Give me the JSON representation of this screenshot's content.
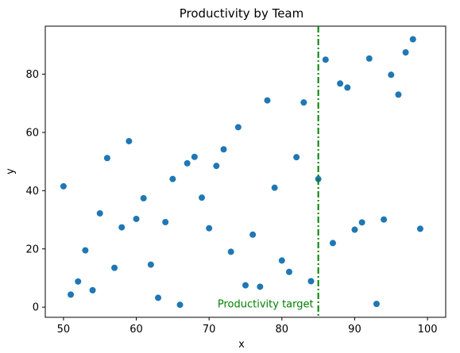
{
  "chart_data": {
    "type": "scatter",
    "title": "Productivity by Team",
    "xlabel": "x",
    "ylabel": "y",
    "xlim": [
      47.5,
      102.5
    ],
    "ylim": [
      -3.5,
      96.5
    ],
    "x_ticks": [
      50,
      60,
      70,
      80,
      90,
      100
    ],
    "y_ticks": [
      0,
      20,
      40,
      60,
      80
    ],
    "grid": false,
    "legend": "none",
    "marker_color": "#1f77b4",
    "series": [
      {
        "points": [
          [
            50,
            41.5
          ],
          [
            51,
            4.3
          ],
          [
            52,
            8.8
          ],
          [
            53,
            19.5
          ],
          [
            54,
            5.8
          ],
          [
            55,
            32.2
          ],
          [
            56,
            51.2
          ],
          [
            57,
            13.5
          ],
          [
            58,
            27.4
          ],
          [
            59,
            57.0
          ],
          [
            60,
            30.3
          ],
          [
            61,
            37.4
          ],
          [
            62,
            14.6
          ],
          [
            63,
            3.2
          ],
          [
            64,
            29.2
          ],
          [
            65,
            44.0
          ],
          [
            66,
            0.8
          ],
          [
            67,
            49.4
          ],
          [
            68,
            51.6
          ],
          [
            69,
            37.6
          ],
          [
            70,
            27.1
          ],
          [
            71,
            48.5
          ],
          [
            72,
            54.2
          ],
          [
            73,
            19.0
          ],
          [
            74,
            61.8
          ],
          [
            75,
            7.5
          ],
          [
            76,
            24.9
          ],
          [
            77,
            7.0
          ],
          [
            78,
            71.0
          ],
          [
            79,
            41.0
          ],
          [
            80,
            16.0
          ],
          [
            81,
            12.1
          ],
          [
            82,
            51.5
          ],
          [
            83,
            70.3
          ],
          [
            84,
            8.9
          ],
          [
            85,
            44.0
          ],
          [
            86,
            85.0
          ],
          [
            87,
            22.0
          ],
          [
            88,
            76.8
          ],
          [
            89,
            75.4
          ],
          [
            90,
            26.6
          ],
          [
            91,
            29.1
          ],
          [
            92,
            85.4
          ],
          [
            93,
            1.1
          ],
          [
            94,
            30.1
          ],
          [
            95,
            79.8
          ],
          [
            96,
            73.0
          ],
          [
            97,
            87.5
          ],
          [
            98,
            92.0
          ],
          [
            99,
            26.9
          ]
        ]
      }
    ],
    "reference_line": {
      "orientation": "vertical",
      "x": 85,
      "color": "#008000",
      "style": "dash-dot",
      "label": "Productivity target"
    }
  }
}
